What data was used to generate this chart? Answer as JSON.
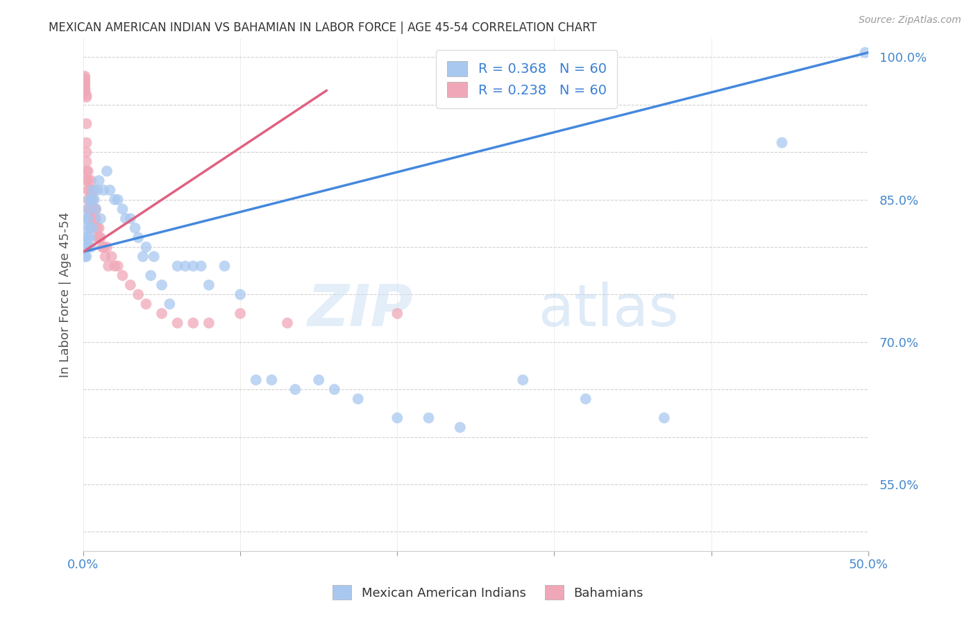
{
  "title": "MEXICAN AMERICAN INDIAN VS BAHAMIAN IN LABOR FORCE | AGE 45-54 CORRELATION CHART",
  "source": "Source: ZipAtlas.com",
  "ylabel": "In Labor Force | Age 45-54",
  "xlim": [
    0.0,
    0.5
  ],
  "ylim": [
    0.48,
    1.02
  ],
  "x_ticks": [
    0.0,
    0.1,
    0.2,
    0.3,
    0.4,
    0.5
  ],
  "x_tick_labels": [
    "0.0%",
    "",
    "",
    "",
    "",
    "50.0%"
  ],
  "y_ticks": [
    0.5,
    0.55,
    0.6,
    0.65,
    0.7,
    0.75,
    0.8,
    0.85,
    0.9,
    0.95,
    1.0
  ],
  "y_tick_labels": [
    "",
    "55.0%",
    "",
    "",
    "70.0%",
    "",
    "",
    "85.0%",
    "",
    "",
    "100.0%"
  ],
  "blue_R": 0.368,
  "blue_N": 60,
  "pink_R": 0.238,
  "pink_N": 60,
  "blue_color": "#a8c8f0",
  "pink_color": "#f0a8b8",
  "blue_line_color": "#4488dd",
  "pink_line_color": "#e06080",
  "watermark_zip": "ZIP",
  "watermark_atlas": "atlas",
  "legend_blue_label": "Mexican American Indians",
  "legend_pink_label": "Bahamians",
  "blue_line_x0": 0.0,
  "blue_line_y0": 0.795,
  "blue_line_x1": 0.5,
  "blue_line_y1": 1.005,
  "pink_line_x0": 0.0,
  "pink_line_y0": 0.795,
  "pink_line_x1": 0.155,
  "pink_line_y1": 0.965,
  "blue_x": [
    0.001,
    0.001,
    0.001,
    0.001,
    0.002,
    0.002,
    0.002,
    0.003,
    0.003,
    0.003,
    0.003,
    0.004,
    0.004,
    0.004,
    0.005,
    0.005,
    0.006,
    0.006,
    0.007,
    0.008,
    0.009,
    0.01,
    0.011,
    0.013,
    0.015,
    0.017,
    0.02,
    0.022,
    0.025,
    0.027,
    0.03,
    0.033,
    0.035,
    0.038,
    0.04,
    0.043,
    0.045,
    0.05,
    0.055,
    0.06,
    0.065,
    0.07,
    0.075,
    0.08,
    0.09,
    0.1,
    0.11,
    0.12,
    0.135,
    0.15,
    0.16,
    0.175,
    0.2,
    0.22,
    0.24,
    0.28,
    0.32,
    0.37,
    0.445,
    0.498
  ],
  "blue_y": [
    0.83,
    0.81,
    0.8,
    0.79,
    0.82,
    0.8,
    0.79,
    0.84,
    0.83,
    0.81,
    0.8,
    0.85,
    0.82,
    0.81,
    0.85,
    0.8,
    0.86,
    0.82,
    0.85,
    0.84,
    0.86,
    0.87,
    0.83,
    0.86,
    0.88,
    0.86,
    0.85,
    0.85,
    0.84,
    0.83,
    0.83,
    0.82,
    0.81,
    0.79,
    0.8,
    0.77,
    0.79,
    0.76,
    0.74,
    0.78,
    0.78,
    0.78,
    0.78,
    0.76,
    0.78,
    0.75,
    0.66,
    0.66,
    0.65,
    0.66,
    0.65,
    0.64,
    0.62,
    0.62,
    0.61,
    0.66,
    0.64,
    0.62,
    0.91,
    1.005
  ],
  "pink_x": [
    0.001,
    0.001,
    0.001,
    0.001,
    0.001,
    0.001,
    0.001,
    0.001,
    0.002,
    0.002,
    0.002,
    0.002,
    0.002,
    0.002,
    0.002,
    0.002,
    0.003,
    0.003,
    0.003,
    0.003,
    0.003,
    0.003,
    0.004,
    0.004,
    0.004,
    0.005,
    0.005,
    0.005,
    0.005,
    0.006,
    0.006,
    0.007,
    0.007,
    0.007,
    0.008,
    0.008,
    0.009,
    0.009,
    0.01,
    0.01,
    0.011,
    0.012,
    0.013,
    0.014,
    0.015,
    0.016,
    0.018,
    0.02,
    0.022,
    0.025,
    0.03,
    0.035,
    0.04,
    0.05,
    0.06,
    0.07,
    0.08,
    0.1,
    0.13,
    0.2
  ],
  "pink_y": [
    0.98,
    0.978,
    0.975,
    0.972,
    0.97,
    0.968,
    0.965,
    0.963,
    0.96,
    0.958,
    0.91,
    0.9,
    0.89,
    0.88,
    0.87,
    0.93,
    0.87,
    0.88,
    0.86,
    0.85,
    0.84,
    0.83,
    0.86,
    0.84,
    0.83,
    0.87,
    0.85,
    0.84,
    0.82,
    0.86,
    0.85,
    0.84,
    0.86,
    0.83,
    0.84,
    0.83,
    0.82,
    0.81,
    0.82,
    0.81,
    0.81,
    0.8,
    0.8,
    0.79,
    0.8,
    0.78,
    0.79,
    0.78,
    0.78,
    0.77,
    0.76,
    0.75,
    0.74,
    0.73,
    0.72,
    0.72,
    0.72,
    0.73,
    0.72,
    0.73
  ]
}
